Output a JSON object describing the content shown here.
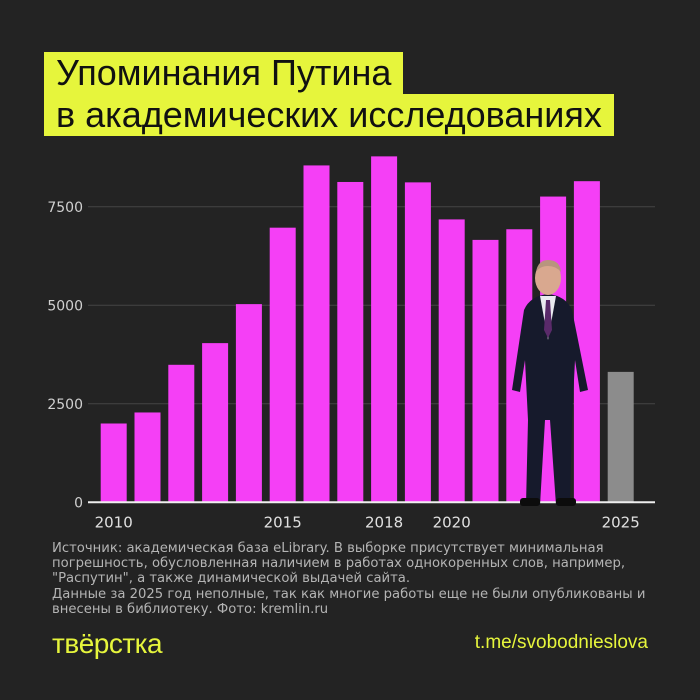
{
  "title": {
    "line1": "Упоминания Путина",
    "line2": "в академических исследованиях"
  },
  "colors": {
    "background": "#232323",
    "bar": "#f53ff6",
    "bar_incomplete": "#8c8c8c",
    "accent": "#e6f53c"
  },
  "chart_data": {
    "type": "bar",
    "categories": [
      "2010",
      "2011",
      "2012",
      "2013",
      "2014",
      "2015",
      "2016",
      "2017",
      "2018",
      "2019",
      "2020",
      "2021",
      "2022",
      "2023",
      "2024",
      "2025"
    ],
    "values": [
      2000,
      2280,
      3490,
      4040,
      5030,
      6970,
      8550,
      8130,
      8780,
      8120,
      7180,
      6660,
      6930,
      7760,
      8150,
      3310
    ],
    "incomplete": [
      "2025"
    ],
    "x_tick_labels": [
      "2010",
      "2015",
      "2018",
      "2020",
      "2025"
    ],
    "y_ticks": [
      0,
      2500,
      5000,
      7500
    ],
    "ylim": [
      0,
      9000
    ],
    "grid": true,
    "title": "",
    "xlabel": "",
    "ylabel": ""
  },
  "note": "Источник: академическая база eLibrary. В выборке присутствует минимальная погрешность, обусловленная наличием в работах однокоренных слов, например, \"Распутин\", а также динамической выдачей сайта.\nДанные за 2025 год неполные, так как многие работы еще не были опубликованы и внесены в библиотеку. Фото: kremlin.ru",
  "logo": "твёрстка",
  "link": "t.me/svobodnieslova"
}
